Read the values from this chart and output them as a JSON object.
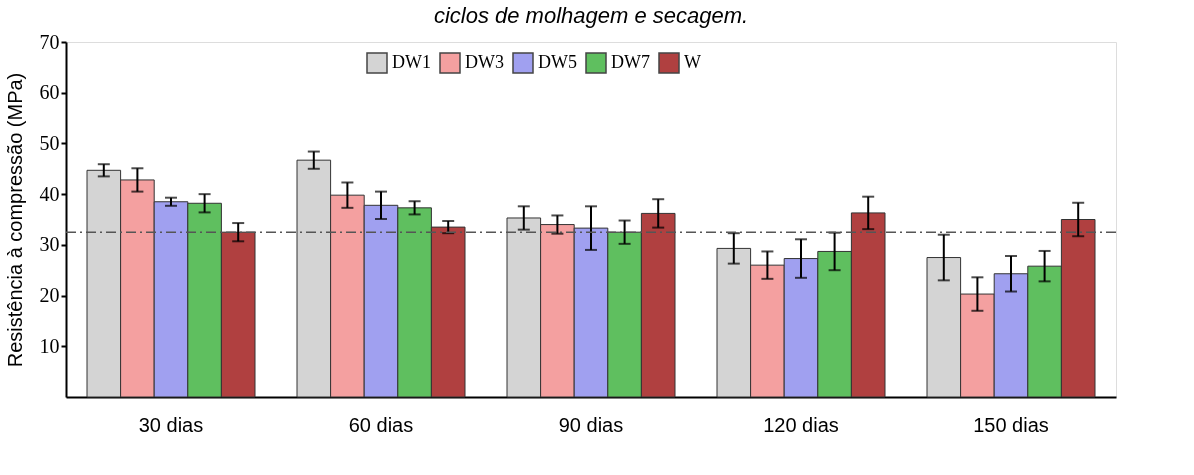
{
  "chart_data": {
    "type": "bar",
    "title": "ciclos de molhagem e secagem.",
    "ylabel": "Resistência à compressão (MPa)",
    "categories": [
      "30 dias",
      "60 dias",
      "90 dias",
      "120 dias",
      "150 dias"
    ],
    "series": [
      {
        "name": "DW1",
        "color": "#d4d4d4",
        "values": [
          44.7,
          46.7,
          35.3,
          29.3,
          27.5
        ],
        "errors": [
          1.2,
          1.7,
          2.3,
          3.0,
          4.5
        ]
      },
      {
        "name": "DW3",
        "color": "#f4a0a0",
        "values": [
          42.8,
          39.8,
          34.0,
          26.0,
          20.3
        ],
        "errors": [
          2.3,
          2.5,
          1.8,
          2.7,
          3.3
        ]
      },
      {
        "name": "DW5",
        "color": "#a0a0f0",
        "values": [
          38.5,
          37.8,
          33.3,
          27.3,
          24.3
        ],
        "errors": [
          0.8,
          2.7,
          4.3,
          3.8,
          3.5
        ]
      },
      {
        "name": "DW7",
        "color": "#5fbf5f",
        "values": [
          38.2,
          37.3,
          32.5,
          28.7,
          25.8
        ],
        "errors": [
          1.8,
          1.3,
          2.3,
          3.7,
          3.0
        ]
      },
      {
        "name": "W",
        "color": "#b04040",
        "values": [
          32.5,
          33.5,
          36.2,
          36.3,
          35.0
        ],
        "errors": [
          1.8,
          1.2,
          2.8,
          3.2,
          3.3
        ]
      }
    ],
    "ylim": [
      0,
      70
    ],
    "yticks": [
      10,
      20,
      30,
      40,
      50,
      60,
      70
    ],
    "ref_lines": [
      {
        "axis": "y",
        "value": 32.5,
        "line_style": "dashed",
        "color": "#555555"
      }
    ],
    "legend": "top",
    "grid": false
  }
}
